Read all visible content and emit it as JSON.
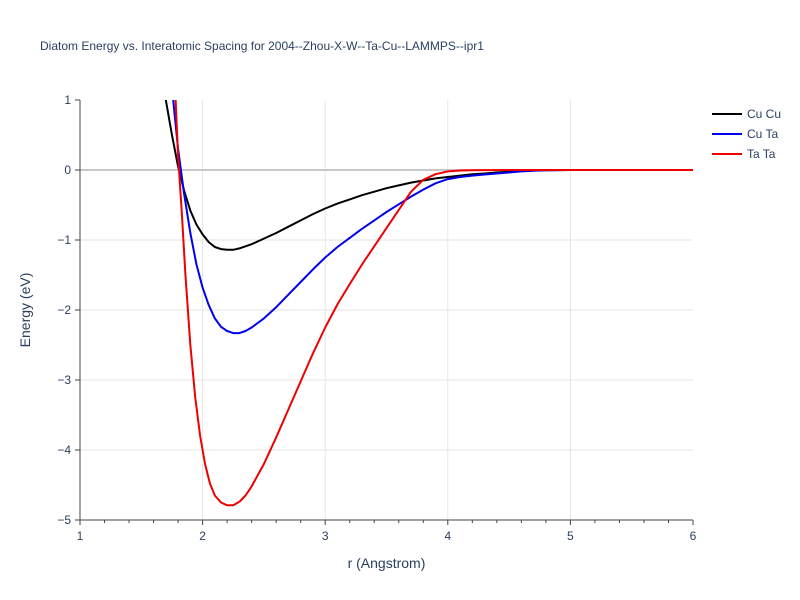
{
  "chart_data": {
    "type": "line",
    "title": "Diatom Energy vs. Interatomic Spacing for 2004--Zhou-X-W--Ta-Cu--LAMMPS--ipr1",
    "xlabel": "r (Angstrom)",
    "ylabel": "Energy (eV)",
    "xlim": [
      1,
      6
    ],
    "ylim": [
      -5,
      1
    ],
    "x_ticks": [
      1,
      2,
      3,
      4,
      5,
      6
    ],
    "x_tick_labels": [
      "1",
      "2",
      "3",
      "4",
      "5",
      "6"
    ],
    "y_ticks": [
      1,
      0,
      -1,
      -2,
      -3,
      -4,
      -5
    ],
    "y_tick_labels": [
      "1",
      "0",
      "−1",
      "−2",
      "−3",
      "−4",
      "−5"
    ],
    "grid": true,
    "legend_position": "top-right",
    "series": [
      {
        "name": "Cu Cu",
        "color": "#000000",
        "x": [
          1.7,
          1.75,
          1.8,
          1.85,
          1.9,
          1.95,
          2.0,
          2.05,
          2.1,
          2.15,
          2.2,
          2.25,
          2.3,
          2.35,
          2.4,
          2.5,
          2.6,
          2.7,
          2.8,
          2.9,
          3.0,
          3.1,
          3.2,
          3.3,
          3.4,
          3.5,
          3.6,
          3.7,
          3.8,
          3.9,
          4.0,
          4.1,
          4.2,
          4.3,
          4.4,
          4.5,
          4.6,
          4.7,
          4.8,
          5.0,
          5.2,
          5.5,
          6.0
        ],
        "y": [
          1.0,
          0.5,
          0.05,
          -0.3,
          -0.58,
          -0.78,
          -0.92,
          -1.03,
          -1.1,
          -1.13,
          -1.14,
          -1.14,
          -1.12,
          -1.09,
          -1.06,
          -0.98,
          -0.9,
          -0.81,
          -0.72,
          -0.63,
          -0.55,
          -0.48,
          -0.42,
          -0.36,
          -0.31,
          -0.26,
          -0.22,
          -0.18,
          -0.15,
          -0.12,
          -0.1,
          -0.08,
          -0.06,
          -0.05,
          -0.035,
          -0.025,
          -0.015,
          -0.008,
          -0.004,
          0.0,
          0.0,
          0.0,
          0.0
        ]
      },
      {
        "name": "Cu Ta",
        "color": "#0000ee",
        "x": [
          1.76,
          1.8,
          1.85,
          1.9,
          1.95,
          2.0,
          2.05,
          2.1,
          2.15,
          2.2,
          2.25,
          2.3,
          2.35,
          2.4,
          2.5,
          2.6,
          2.7,
          2.8,
          2.9,
          3.0,
          3.1,
          3.2,
          3.3,
          3.4,
          3.5,
          3.6,
          3.7,
          3.8,
          3.9,
          4.0,
          4.1,
          4.2,
          4.3,
          4.4,
          4.5,
          4.6,
          4.7,
          4.8,
          5.0,
          5.5,
          6.0
        ],
        "y": [
          1.0,
          0.3,
          -0.35,
          -0.9,
          -1.35,
          -1.68,
          -1.93,
          -2.12,
          -2.24,
          -2.3,
          -2.33,
          -2.33,
          -2.3,
          -2.25,
          -2.12,
          -1.96,
          -1.78,
          -1.6,
          -1.42,
          -1.25,
          -1.1,
          -0.97,
          -0.84,
          -0.72,
          -0.6,
          -0.49,
          -0.38,
          -0.28,
          -0.19,
          -0.13,
          -0.1,
          -0.08,
          -0.065,
          -0.05,
          -0.035,
          -0.02,
          -0.01,
          -0.004,
          0.0,
          0.0,
          0.0
        ]
      },
      {
        "name": "Ta Ta",
        "color": "#ee0000",
        "x": [
          1.78,
          1.8,
          1.83,
          1.86,
          1.9,
          1.94,
          1.98,
          2.02,
          2.06,
          2.1,
          2.15,
          2.2,
          2.25,
          2.3,
          2.35,
          2.4,
          2.5,
          2.6,
          2.7,
          2.8,
          2.9,
          3.0,
          3.1,
          3.2,
          3.3,
          3.4,
          3.5,
          3.6,
          3.7,
          3.8,
          3.9,
          4.0,
          4.1,
          4.2,
          4.3,
          4.4,
          4.5,
          4.6,
          4.8,
          5.0,
          5.5,
          6.0
        ],
        "y": [
          1.0,
          0.2,
          -0.6,
          -1.5,
          -2.5,
          -3.25,
          -3.8,
          -4.2,
          -4.48,
          -4.65,
          -4.75,
          -4.79,
          -4.79,
          -4.74,
          -4.65,
          -4.52,
          -4.2,
          -3.82,
          -3.42,
          -3.02,
          -2.62,
          -2.25,
          -1.92,
          -1.63,
          -1.35,
          -1.09,
          -0.83,
          -0.57,
          -0.31,
          -0.14,
          -0.06,
          -0.02,
          -0.008,
          -0.004,
          -0.002,
          -0.001,
          0.0,
          0.0,
          0.0,
          0.0,
          0.0,
          0.0
        ]
      }
    ]
  }
}
